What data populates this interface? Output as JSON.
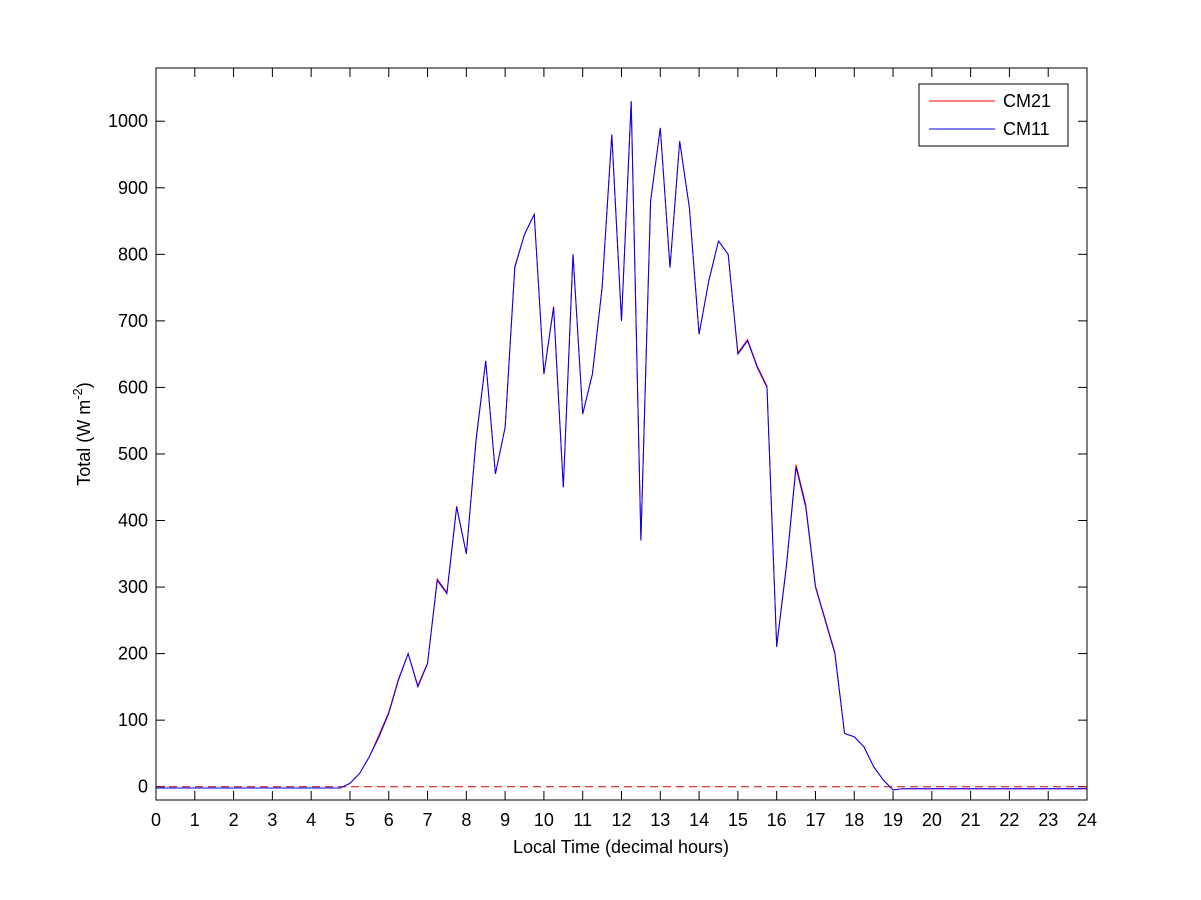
{
  "chart_data": {
    "type": "line",
    "xlabel": "Local Time (decimal hours)",
    "ylabel": [
      "Total (W m",
      "-2",
      ")"
    ],
    "xlim": [
      0,
      24
    ],
    "ylim": [
      -20,
      1080
    ],
    "xticks": [
      0,
      1,
      2,
      3,
      4,
      5,
      6,
      7,
      8,
      9,
      10,
      11,
      12,
      13,
      14,
      15,
      16,
      17,
      18,
      19,
      20,
      21,
      22,
      23,
      24
    ],
    "yticks": [
      0,
      100,
      200,
      300,
      400,
      500,
      600,
      700,
      800,
      900,
      1000
    ],
    "grid": false,
    "legend": "top-right",
    "reference_line": {
      "value": 0,
      "color": "#cc0000",
      "style": "dashed"
    },
    "x": [
      0,
      0.25,
      0.5,
      0.75,
      1,
      1.25,
      1.5,
      1.75,
      2,
      2.25,
      2.5,
      2.75,
      3,
      3.25,
      3.5,
      3.75,
      4,
      4.25,
      4.5,
      4.75,
      5,
      5.25,
      5.5,
      5.75,
      6,
      6.25,
      6.5,
      6.75,
      7,
      7.25,
      7.5,
      7.75,
      8,
      8.25,
      8.5,
      8.75,
      9,
      9.25,
      9.5,
      9.75,
      10,
      10.25,
      10.5,
      10.75,
      11,
      11.25,
      11.5,
      11.75,
      12,
      12.25,
      12.5,
      12.75,
      13,
      13.25,
      13.5,
      13.75,
      14,
      14.25,
      14.5,
      14.75,
      15,
      15.25,
      15.5,
      15.75,
      16,
      16.25,
      16.5,
      16.75,
      17,
      17.25,
      17.5,
      17.75,
      18,
      18.25,
      18.5,
      18.75,
      19,
      19.25,
      19.5,
      19.75,
      20,
      20.25,
      20.5,
      20.75,
      21,
      21.25,
      21.5,
      21.75,
      22,
      22.25,
      22.5,
      22.75,
      23,
      23.25,
      23.5,
      23.75,
      24
    ],
    "series": [
      {
        "name": "CM21",
        "color": "#ff0000",
        "values": [
          -2,
          -2,
          -2,
          -2,
          -2,
          -2,
          -2,
          -2,
          -2,
          -2,
          -2,
          -2,
          -2,
          -2,
          -2,
          -2,
          -2,
          -2,
          -2,
          -2,
          5,
          20,
          45,
          78,
          112,
          162,
          200,
          152,
          186,
          312,
          292,
          422,
          350,
          522,
          640,
          470,
          540,
          782,
          830,
          860,
          620,
          722,
          450,
          800,
          560,
          620,
          750,
          980,
          700,
          1030,
          370,
          880,
          990,
          780,
          970,
          870,
          680,
          760,
          820,
          800,
          652,
          672,
          632,
          602,
          212,
          332,
          484,
          424,
          302,
          252,
          202,
          80,
          75,
          60,
          30,
          10,
          -5,
          -3,
          -3,
          -3,
          -3,
          -3,
          -3,
          -3,
          -3,
          -3,
          -3,
          -3,
          -3,
          -3,
          -3,
          -3,
          -3,
          -3,
          -3,
          -3,
          -3
        ]
      },
      {
        "name": "CM11",
        "color": "#0000ff",
        "values": [
          -2,
          -2,
          -2,
          -2,
          -2,
          -2,
          -2,
          -2,
          -2,
          -2,
          -2,
          -2,
          -2,
          -2,
          -2,
          -2,
          -2,
          -2,
          -2,
          -2,
          5,
          20,
          45,
          75,
          110,
          160,
          200,
          150,
          185,
          310,
          290,
          420,
          350,
          520,
          640,
          470,
          540,
          780,
          830,
          860,
          620,
          720,
          450,
          800,
          560,
          620,
          750,
          980,
          700,
          1030,
          370,
          880,
          990,
          780,
          970,
          870,
          680,
          760,
          820,
          800,
          650,
          670,
          630,
          600,
          210,
          330,
          480,
          420,
          300,
          250,
          200,
          80,
          75,
          60,
          30,
          10,
          -5,
          -3,
          -3,
          -3,
          -3,
          -3,
          -3,
          -3,
          -3,
          -3,
          -3,
          -3,
          -3,
          -3,
          -3,
          -3,
          -3,
          -3,
          -3,
          -3,
          -3
        ]
      }
    ]
  }
}
